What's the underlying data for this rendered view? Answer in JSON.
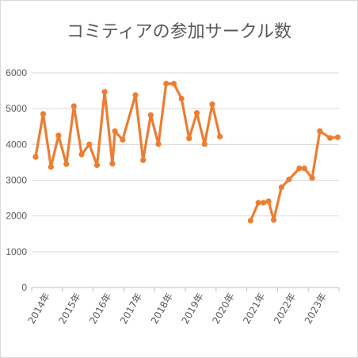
{
  "chart_data": {
    "type": "line",
    "title": "コミティアの参加サークル数",
    "xlabel": "",
    "ylabel": "",
    "ylim": [
      0,
      6000
    ],
    "yticks": [
      "0",
      "1000",
      "2000",
      "3000",
      "4000",
      "5000",
      "6000"
    ],
    "grid": true,
    "legend": "none",
    "xticks": [
      "2014年",
      "2015年",
      "2016年",
      "2017年",
      "2018年",
      "2019年",
      "2020年",
      "2021年",
      "2022年",
      "2023年"
    ],
    "series": [
      {
        "color": "#ed7d31",
        "points": [
          [
            "2014-02",
            3650
          ],
          [
            "2014-05",
            4850
          ],
          [
            "2014-08",
            3370
          ],
          [
            "2014-11",
            4250
          ],
          [
            "2015-02",
            3450
          ],
          [
            "2015-05",
            5070
          ],
          [
            "2015-08",
            3720
          ],
          [
            "2015-11",
            4000
          ],
          [
            "2016-02",
            3420
          ],
          [
            "2016-05",
            5470
          ],
          [
            "2016-08",
            3460
          ],
          [
            "2016-09",
            4370
          ],
          [
            "2016-12",
            4130
          ],
          [
            "2017-05",
            5380
          ],
          [
            "2017-08",
            3560
          ],
          [
            "2017-11",
            4820
          ],
          [
            "2018-02",
            4010
          ],
          [
            "2018-05",
            5700
          ],
          [
            "2018-08",
            5700
          ],
          [
            "2018-11",
            5280
          ],
          [
            "2019-02",
            4170
          ],
          [
            "2019-05",
            4880
          ],
          [
            "2019-08",
            4010
          ],
          [
            "2019-11",
            5120
          ],
          [
            "2020-02",
            4220
          ],
          [
            "2020-05",
            null
          ],
          [
            "2020-08",
            null
          ],
          [
            "2020-11",
            null
          ],
          [
            "2021-02",
            1870
          ],
          [
            "2021-05",
            2370
          ],
          [
            "2021-07",
            2370
          ],
          [
            "2021-09",
            2410
          ],
          [
            "2021-11",
            1890
          ],
          [
            "2022-02",
            2800
          ],
          [
            "2022-05",
            3020
          ],
          [
            "2022-09",
            3330
          ],
          [
            "2022-11",
            3330
          ],
          [
            "2023-02",
            3060
          ],
          [
            "2023-05",
            4370
          ],
          [
            "2023-09",
            4180
          ],
          [
            "2023-12",
            4200
          ]
        ]
      }
    ]
  }
}
